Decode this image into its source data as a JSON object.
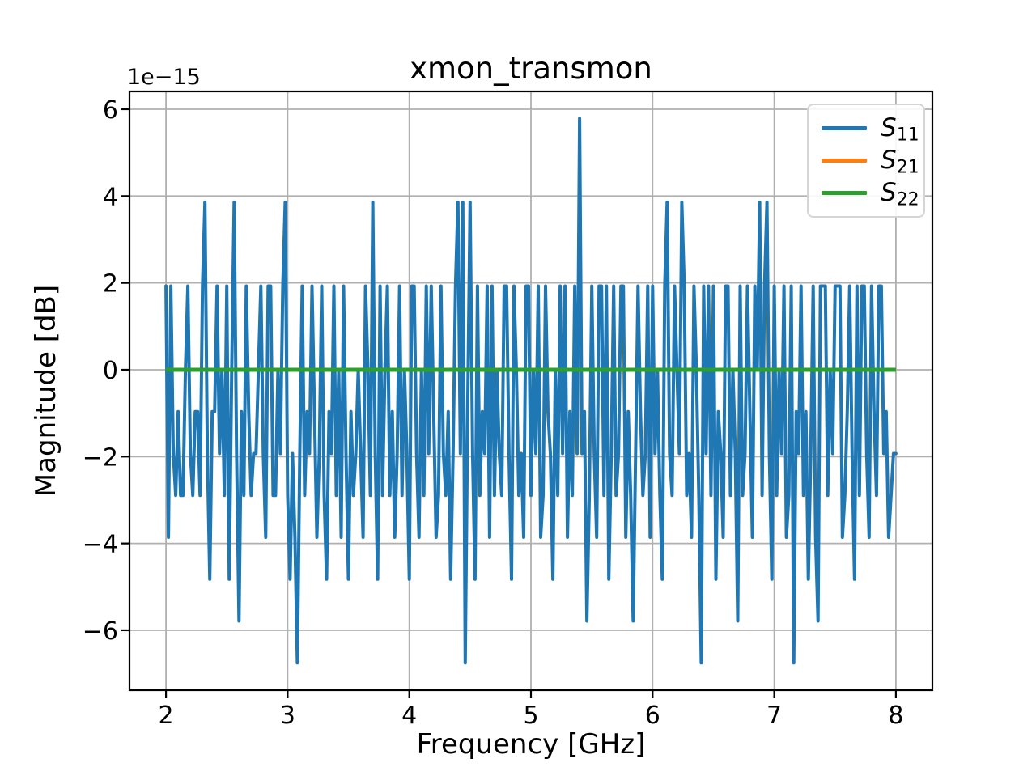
{
  "figure": {
    "title": "xmon_transmon",
    "offset_text": "1e−15",
    "background": "#ffffff"
  },
  "axes": {
    "xlabel": "Frequency [GHz]",
    "ylabel": "Magnitude [dB]",
    "x_ticks": [
      2,
      3,
      4,
      5,
      6,
      7,
      8
    ],
    "y_ticks": [
      -6,
      -4,
      -2,
      0,
      2,
      4,
      6
    ],
    "xlim": [
      1.7,
      8.3
    ],
    "ylim": [
      -7.38,
      6.41
    ],
    "grid": true,
    "grid_color": "#b0b0b0",
    "spine_color": "#000000"
  },
  "legend": {
    "position": "upper right",
    "items": [
      {
        "name": "S11",
        "label_main": "S",
        "label_sub": "11",
        "color": "#1f77b4"
      },
      {
        "name": "S21",
        "label_main": "S",
        "label_sub": "21",
        "color": "#ff7f0e"
      },
      {
        "name": "S22",
        "label_main": "S",
        "label_sub": "22",
        "color": "#2ca02c"
      }
    ]
  },
  "chart_data": {
    "type": "line",
    "title": "xmon_transmon",
    "xlabel": "Frequency [GHz]",
    "ylabel": "Magnitude [dB]",
    "y_axis_offset": "1e−15",
    "y_unit_note": "y values are step_index × 0.96448 in units of 1e-15 dB (floating-point noise quantization)",
    "xlim": [
      1.7,
      8.3
    ],
    "ylim": [
      -7.38,
      6.41
    ],
    "grid": true,
    "legend_position": "upper right",
    "x_start": 2.0,
    "x_step": 0.02,
    "n_points": 301,
    "step_unit_1e15": 0.96448,
    "series": [
      {
        "name": "S11",
        "color": "#1f77b4",
        "y_steps": [
          2,
          -4,
          2,
          -2,
          -3,
          -1,
          -3,
          -3,
          0,
          2,
          -2,
          -3,
          -1,
          -1,
          -3,
          2,
          4,
          -2,
          -5,
          -1,
          -1,
          2,
          -2,
          0,
          -3,
          2,
          -5,
          0,
          4,
          -2,
          -6,
          -1,
          -3,
          2,
          -1,
          -3,
          -2,
          -2,
          0,
          2,
          -2,
          -4,
          2,
          2,
          -3,
          -3,
          0,
          -2,
          2,
          4,
          -3,
          -5,
          -2,
          -4,
          -7,
          -2,
          2,
          -3,
          -1,
          -2,
          2,
          -1,
          -4,
          -2,
          2,
          -3,
          -5,
          -1,
          -2,
          2,
          -3,
          0,
          -4,
          2,
          -2,
          -5,
          -1,
          -3,
          -2,
          0,
          -2,
          -4,
          2,
          0,
          -3,
          4,
          -2,
          -5,
          2,
          -3,
          0,
          2,
          -3,
          -1,
          -4,
          -2,
          2,
          -3,
          0,
          -2,
          -5,
          2,
          2,
          -2,
          -4,
          0,
          -3,
          2,
          -2,
          2,
          -1,
          -4,
          -3,
          2,
          -2,
          -3,
          -1,
          -5,
          -2,
          2,
          4,
          -2,
          4,
          -7,
          -1,
          4,
          -2,
          -5,
          2,
          -3,
          -1,
          -2,
          2,
          -4,
          2,
          -3,
          0,
          -2,
          -3,
          2,
          2,
          -2,
          -5,
          2,
          0,
          -3,
          -2,
          -4,
          2,
          2,
          -3,
          0,
          -2,
          2,
          -4,
          -3,
          2,
          -1,
          -2,
          -5,
          0,
          -3,
          2,
          -2,
          2,
          -4,
          -1,
          -3,
          2,
          -2,
          6,
          -2,
          -1,
          -6,
          -3,
          2,
          -2,
          -4,
          2,
          2,
          -3,
          2,
          -5,
          -2,
          2,
          -3,
          -2,
          2,
          2,
          -4,
          -1,
          -3,
          -6,
          -2,
          2,
          -1,
          -3,
          -2,
          2,
          -4,
          2,
          -2,
          0,
          -3,
          -5,
          2,
          4,
          -2,
          -3,
          2,
          0,
          -2,
          4,
          2,
          -3,
          -2,
          -4,
          2,
          0,
          -3,
          -7,
          2,
          -2,
          2,
          -3,
          2,
          -5,
          -1,
          -2,
          -4,
          2,
          2,
          -3,
          0,
          -2,
          -6,
          2,
          -3,
          -2,
          2,
          -1,
          -4,
          2,
          0,
          4,
          -3,
          2,
          4,
          -2,
          -5,
          2,
          -3,
          0,
          -2,
          2,
          -4,
          -3,
          2,
          -7,
          -1,
          -2,
          2,
          -3,
          -1,
          -5,
          -2,
          2,
          -4,
          -6,
          2,
          2,
          2,
          -3,
          0,
          -2,
          2,
          2,
          2,
          -4,
          -3,
          -1,
          2,
          -2,
          -5,
          2,
          -3,
          2,
          2,
          -2,
          -4,
          2,
          -1,
          -3,
          2,
          2,
          -2,
          -1,
          -4,
          -3,
          -2,
          -2
        ]
      },
      {
        "name": "S21",
        "color": "#ff7f0e",
        "constant_y": 0,
        "x_range": [
          2.0,
          8.0
        ]
      },
      {
        "name": "S22",
        "color": "#2ca02c",
        "constant_y": 0,
        "x_range": [
          2.0,
          8.0
        ]
      }
    ]
  }
}
